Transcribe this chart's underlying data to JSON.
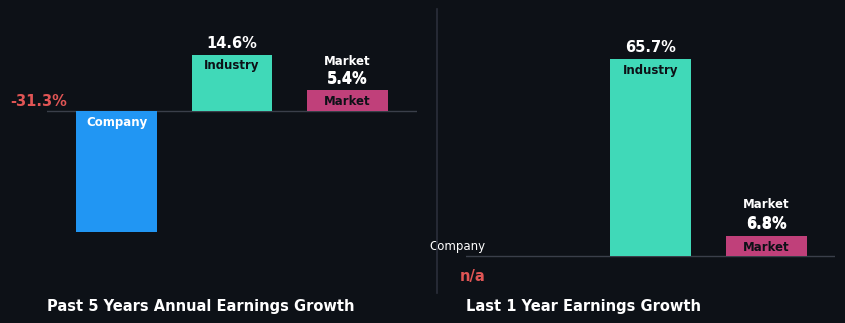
{
  "background_color": "#0d1117",
  "chart1": {
    "title": "Past 5 Years Annual Earnings Growth",
    "bars": [
      {
        "label": "Company",
        "value": -31.3,
        "color": "#2196f3",
        "display": "-31.3%",
        "val_color": "#e05555"
      },
      {
        "label": "Industry",
        "value": 14.6,
        "color": "#40d9b8",
        "display": "14.6%",
        "val_color": "#ffffff"
      },
      {
        "label": "Market",
        "value": 5.4,
        "color": "#c0407a",
        "display": "5.4%",
        "val_color": "#ffffff"
      }
    ]
  },
  "chart2": {
    "title": "Last 1 Year Earnings Growth",
    "bars": [
      {
        "label": "Company",
        "value": 0,
        "color": "#2196f3",
        "display": "n/a",
        "val_color": "#e05555"
      },
      {
        "label": "Industry",
        "value": 65.7,
        "color": "#40d9b8",
        "display": "65.7%",
        "val_color": "#ffffff"
      },
      {
        "label": "Market",
        "value": 6.8,
        "color": "#c0407a",
        "display": "6.8%",
        "val_color": "#ffffff"
      }
    ]
  },
  "bg": "#0d1117",
  "title_color": "#ffffff",
  "title_fontsize": 10.5,
  "label_fontsize": 8.5,
  "value_fontsize": 10.5,
  "divider_color": "#2a2e3a"
}
